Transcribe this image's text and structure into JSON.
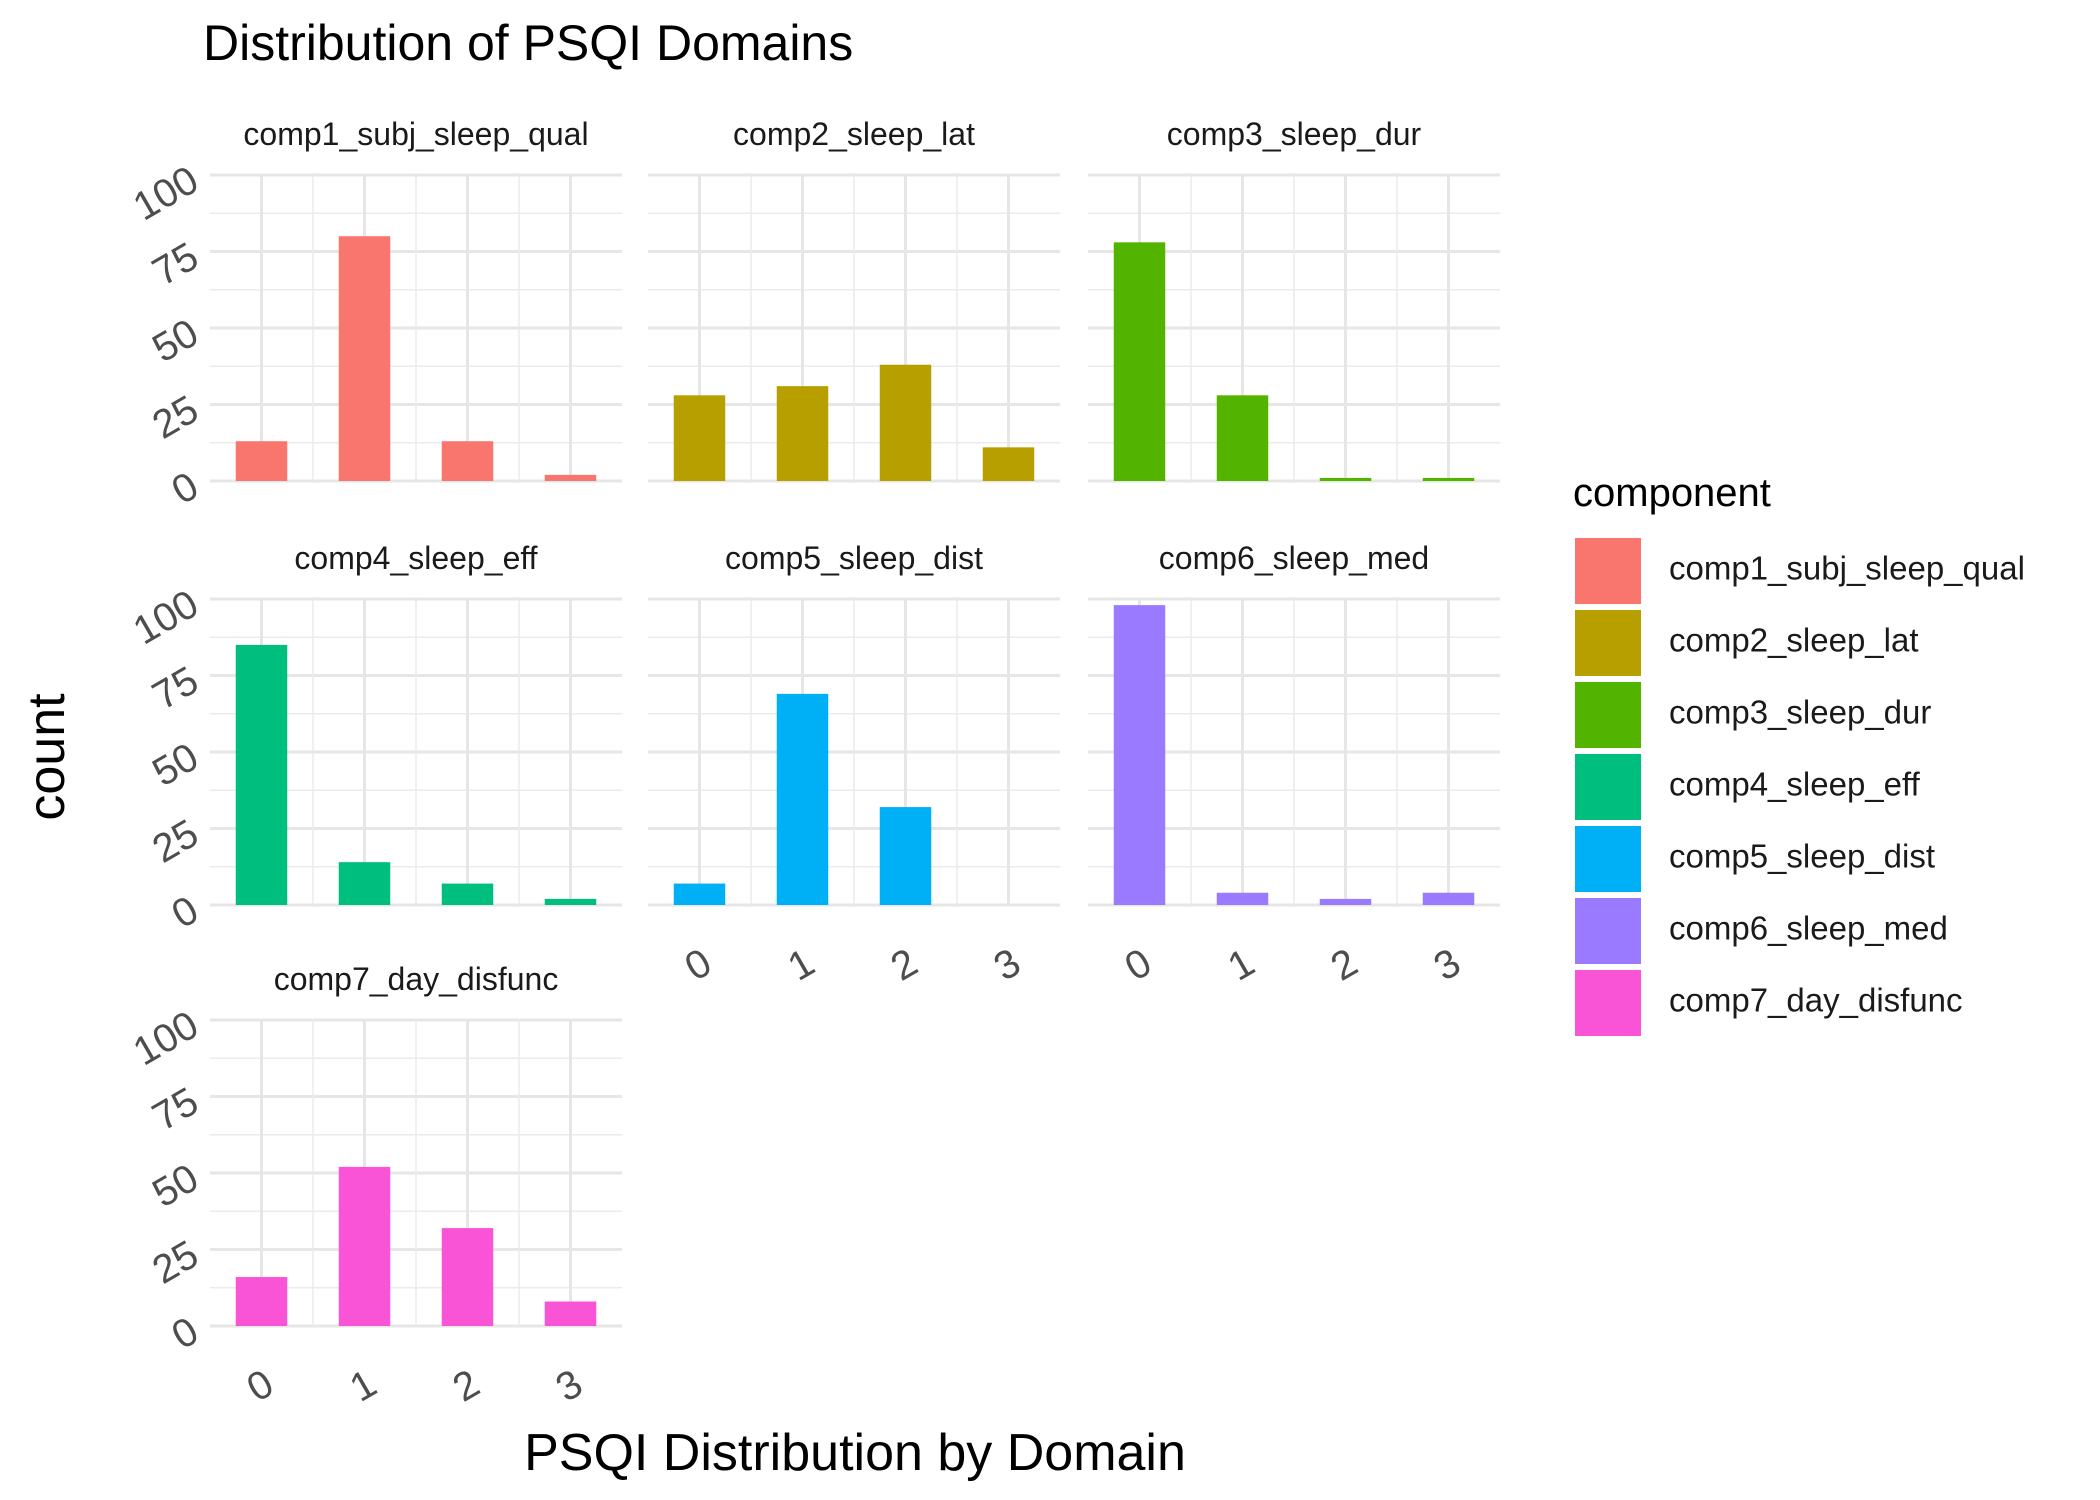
{
  "chart_data": {
    "type": "bar",
    "title": "Distribution of PSQI Domains",
    "xlabel": "PSQI Distribution by Domain",
    "ylabel": "count",
    "ylim": [
      0,
      100
    ],
    "y_ticks": [
      "0",
      "25",
      "50",
      "75",
      "100"
    ],
    "categories": [
      "0",
      "1",
      "2",
      "3"
    ],
    "grid": true,
    "legend": {
      "title": "component",
      "position": "right"
    },
    "series": [
      {
        "name": "comp1_subj_sleep_qual",
        "color": "#F8766D",
        "values": [
          13,
          80,
          13,
          2
        ]
      },
      {
        "name": "comp2_sleep_lat",
        "color": "#B79F00",
        "values": [
          28,
          31,
          38,
          11
        ]
      },
      {
        "name": "comp3_sleep_dur",
        "color": "#53B400",
        "values": [
          78,
          28,
          1,
          1
        ]
      },
      {
        "name": "comp4_sleep_eff",
        "color": "#00BE7E",
        "values": [
          85,
          14,
          7,
          2
        ]
      },
      {
        "name": "comp5_sleep_dist",
        "color": "#00B0F6",
        "values": [
          7,
          69,
          32,
          0
        ]
      },
      {
        "name": "comp6_sleep_med",
        "color": "#9A7BFF",
        "values": [
          98,
          4,
          2,
          4
        ]
      },
      {
        "name": "comp7_day_disfunc",
        "color": "#F954D5",
        "values": [
          16,
          52,
          32,
          8
        ]
      }
    ]
  }
}
